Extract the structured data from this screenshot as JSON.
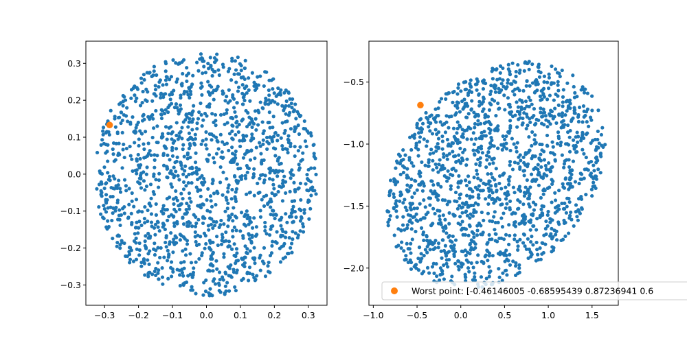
{
  "colors": {
    "cloud": "#1f77b4",
    "worst": "#ff7f0e",
    "axes": "#000000",
    "background": "#ffffff"
  },
  "chart_data": [
    {
      "type": "scatter",
      "title": "",
      "xlabel": "",
      "ylabel": "",
      "xlim": [
        -0.355,
        0.355
      ],
      "ylim": [
        -0.355,
        0.36
      ],
      "xticks": [
        -0.3,
        -0.2,
        -0.1,
        0.0,
        0.1,
        0.2,
        0.3
      ],
      "xtick_labels": [
        "−0.3",
        "−0.2",
        "−0.1",
        "0.0",
        "0.1",
        "0.2",
        "0.3"
      ],
      "yticks": [
        -0.3,
        -0.2,
        -0.1,
        0.0,
        0.1,
        0.2,
        0.3
      ],
      "ytick_labels": [
        "−0.3",
        "−0.2",
        "−0.1",
        "0.0",
        "0.1",
        "0.2",
        "0.3"
      ],
      "grid": false,
      "cloud": {
        "distribution": "uniform disc",
        "center": [
          0.0,
          0.0
        ],
        "radius": 0.33,
        "count": 1500,
        "color": "#1f77b4"
      },
      "highlight": {
        "x": -0.285,
        "y": 0.133,
        "color": "#ff7f0e"
      }
    },
    {
      "type": "scatter",
      "title": "",
      "xlabel": "",
      "ylabel": "",
      "xlim": [
        -1.05,
        1.8
      ],
      "ylim": [
        -2.3,
        -0.17
      ],
      "xticks": [
        -1.0,
        -0.5,
        0.0,
        0.5,
        1.0,
        1.5
      ],
      "xtick_labels": [
        "−1.0",
        "−0.5",
        "0.0",
        "0.5",
        "1.0",
        "1.5"
      ],
      "yticks": [
        -2.0,
        -1.5,
        -1.0,
        -0.5
      ],
      "ytick_labels": [
        "−2.0",
        "−1.5",
        "−1.0",
        "−0.5"
      ],
      "grid": false,
      "cloud": {
        "distribution": "sheared uniform disc",
        "center": [
          0.4,
          -1.25
        ],
        "x_spread": 1.25,
        "y_spread": 0.88,
        "slope": 0.21,
        "count": 1500,
        "color": "#1f77b4"
      },
      "highlight": {
        "x": -0.46146005,
        "y": -0.68595439,
        "color": "#ff7f0e"
      },
      "legend": {
        "location": "lower right",
        "entries": [
          {
            "label": "Worst point: [-0.46146005 -0.68595439  0.87236941  0.6",
            "color": "#ff7f0e"
          }
        ]
      }
    }
  ]
}
